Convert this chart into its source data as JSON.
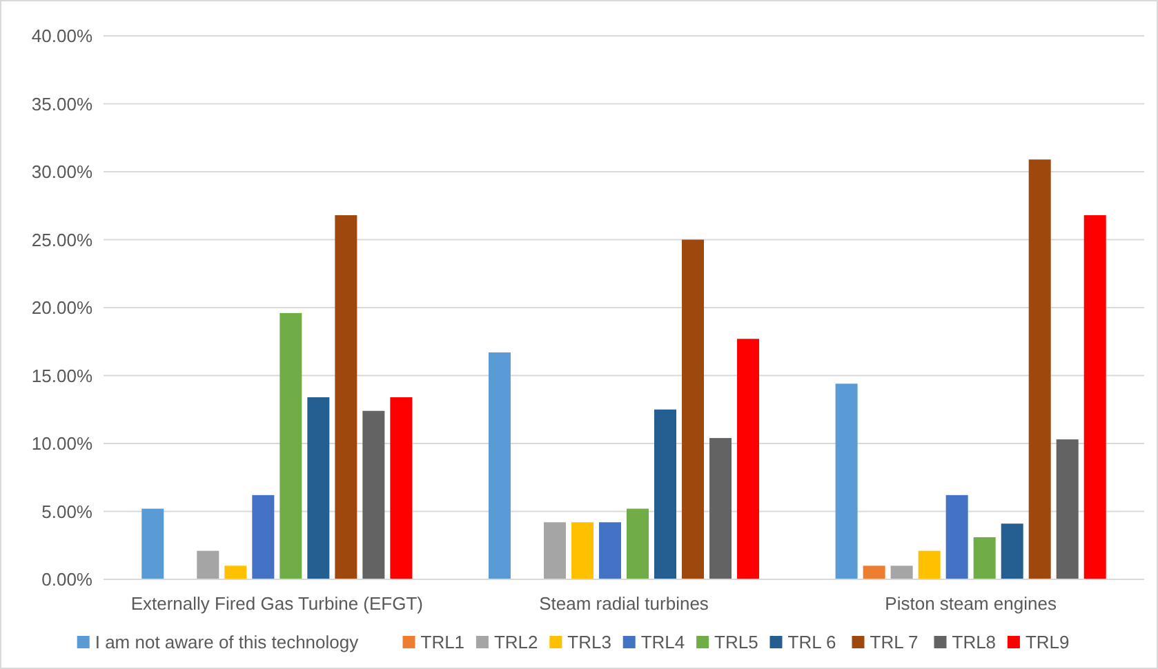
{
  "chart_data": {
    "type": "bar",
    "categories": [
      "Externally Fired Gas Turbine (EFGT)",
      "Steam radial turbines",
      "Piston steam engines"
    ],
    "series": [
      {
        "name": "I am not aware of this technology",
        "color": "#5b9bd5",
        "values": [
          5.2,
          16.7,
          14.4
        ]
      },
      {
        "name": "TRL1",
        "color": "#ed7d31",
        "values": [
          0,
          0,
          1
        ]
      },
      {
        "name": "TRL2",
        "color": "#a5a5a5",
        "values": [
          2.1,
          4.2,
          1
        ]
      },
      {
        "name": "TRL3",
        "color": "#ffc000",
        "values": [
          1,
          4.2,
          2.1
        ]
      },
      {
        "name": "TRL4",
        "color": "#4472c4",
        "values": [
          6.2,
          4.2,
          6.2
        ]
      },
      {
        "name": "TRL5",
        "color": "#70ad47",
        "values": [
          19.6,
          5.2,
          3.1
        ]
      },
      {
        "name": "TRL 6",
        "color": "#255e91",
        "values": [
          13.4,
          12.5,
          4.1
        ]
      },
      {
        "name": "TRL 7",
        "color": "#9e480e",
        "values": [
          26.8,
          25,
          30.9
        ]
      },
      {
        "name": "TRL8",
        "color": "#636363",
        "values": [
          12.4,
          10.4,
          10.3
        ]
      },
      {
        "name": "TRL9",
        "color": "#ff0000",
        "values": [
          13.4,
          17.7,
          26.8
        ]
      }
    ],
    "ylim": [
      0,
      40
    ],
    "yticks": [
      {
        "value": 0,
        "label": "0.00%"
      },
      {
        "value": 5,
        "label": "5.00%"
      },
      {
        "value": 10,
        "label": "10.00%"
      },
      {
        "value": 15,
        "label": "15.00%"
      },
      {
        "value": 20,
        "label": "20.00%"
      },
      {
        "value": 25,
        "label": "25.00%"
      },
      {
        "value": 30,
        "label": "30.00%"
      },
      {
        "value": 35,
        "label": "35.00%"
      },
      {
        "value": 40,
        "label": "40.00%"
      }
    ],
    "grid": "y",
    "legend": "bottom"
  }
}
